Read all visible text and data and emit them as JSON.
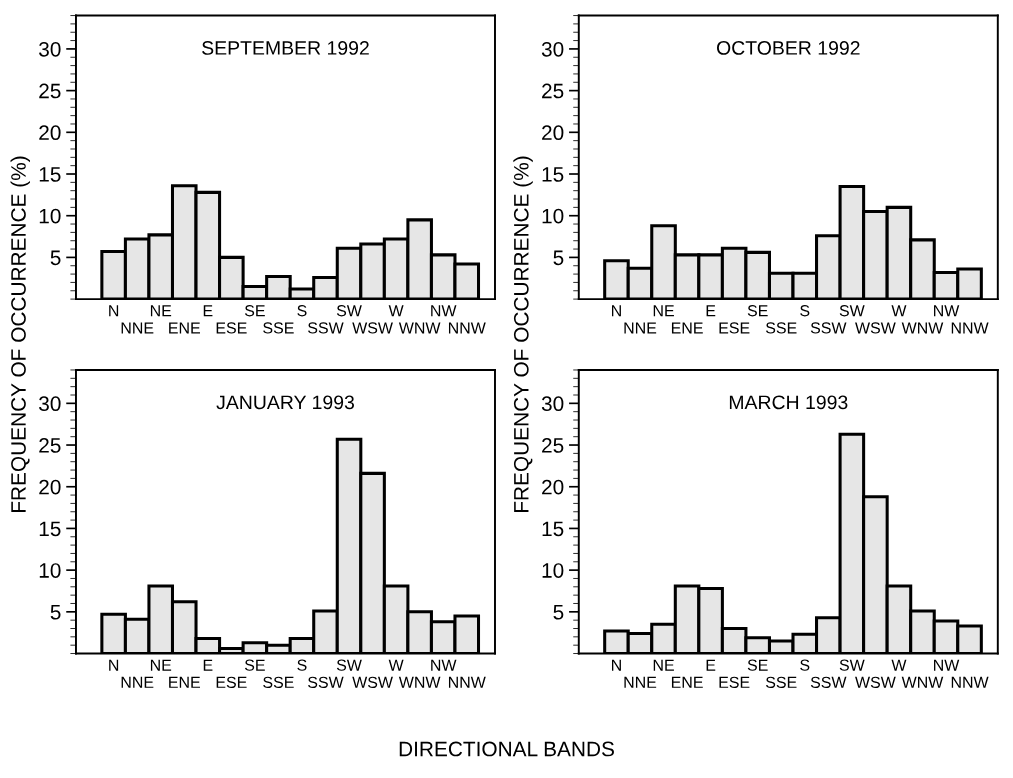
{
  "chart_data": [
    {
      "type": "bar",
      "title": "SEPTEMBER 1992",
      "ylabel": "FREQUENCY OF OCCURRENCE (%)",
      "categories": [
        "N",
        "NNE",
        "NE",
        "ENE",
        "E",
        "ESE",
        "SE",
        "SSE",
        "S",
        "SSW",
        "SW",
        "WSW",
        "W",
        "WNW",
        "NW",
        "NNW"
      ],
      "color": "#e6e6e6",
      "values": [
        5.7,
        7.2,
        7.7,
        13.6,
        12.8,
        5.0,
        1.5,
        2.7,
        1.2,
        2.6,
        6.1,
        6.6,
        7.2,
        9.5,
        5.3,
        4.2
      ],
      "ylim": [
        0,
        34
      ],
      "yticks": [
        5,
        10,
        15,
        20,
        25,
        30
      ]
    },
    {
      "type": "bar",
      "title": "OCTOBER 1992",
      "ylabel": "FREQUENCY OF OCCURRENCE (%)",
      "categories": [
        "N",
        "NNE",
        "NE",
        "ENE",
        "E",
        "ESE",
        "SE",
        "SSE",
        "S",
        "SSW",
        "SW",
        "WSW",
        "W",
        "WNW",
        "NW",
        "NNW"
      ],
      "color": "#e6e6e6",
      "values": [
        4.6,
        3.7,
        8.8,
        5.3,
        5.3,
        6.1,
        5.6,
        3.1,
        3.1,
        7.6,
        13.5,
        10.5,
        11.0,
        7.1,
        3.2,
        3.6
      ],
      "ylim": [
        0,
        34
      ],
      "yticks": [
        5,
        10,
        15,
        20,
        25,
        30
      ]
    },
    {
      "type": "bar",
      "title": "JANUARY 1993",
      "xlabel": "DIRECTIONAL BANDS",
      "categories": [
        "N",
        "NNE",
        "NE",
        "ENE",
        "E",
        "ESE",
        "SE",
        "SSE",
        "S",
        "SSW",
        "SW",
        "WSW",
        "W",
        "WNW",
        "NW",
        "NNW"
      ],
      "color": "#e6e6e6",
      "values": [
        4.7,
        4.1,
        8.1,
        6.2,
        1.8,
        0.6,
        1.3,
        1.0,
        1.8,
        5.1,
        25.7,
        21.6,
        8.1,
        5.0,
        3.8,
        4.5
      ],
      "ylim": [
        0,
        34
      ],
      "yticks": [
        5,
        10,
        15,
        20,
        25,
        30
      ]
    },
    {
      "type": "bar",
      "title": "MARCH 1993",
      "categories": [
        "N",
        "NNE",
        "NE",
        "ENE",
        "E",
        "ESE",
        "SE",
        "SSE",
        "S",
        "SSW",
        "SW",
        "WSW",
        "W",
        "WNW",
        "NW",
        "NNW"
      ],
      "color": "#e6e6e6",
      "values": [
        2.7,
        2.4,
        3.5,
        8.1,
        7.8,
        3.0,
        1.9,
        1.5,
        2.3,
        4.3,
        26.3,
        18.8,
        8.1,
        5.1,
        3.9,
        3.3
      ],
      "ylim": [
        0,
        34
      ],
      "yticks": [
        5,
        10,
        15,
        20,
        25,
        30
      ]
    }
  ]
}
